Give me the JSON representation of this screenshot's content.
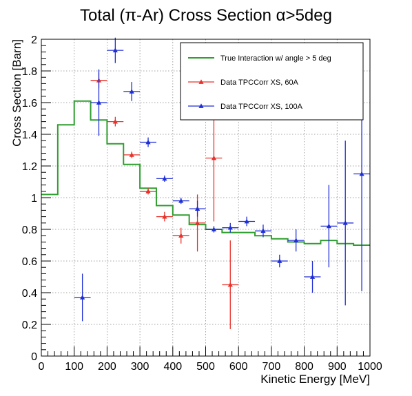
{
  "chart_data": {
    "type": "scatter",
    "title": "Total (π-Ar) Cross Section α>5deg",
    "xlabel": "Kinetic Energy [MeV]",
    "ylabel": "Cross Section [Barn]",
    "xlim": [
      0,
      1000
    ],
    "ylim": [
      0,
      2
    ],
    "x_ticks": [
      0,
      100,
      200,
      300,
      400,
      500,
      600,
      700,
      800,
      900,
      1000
    ],
    "y_ticks": [
      0,
      0.2,
      0.4,
      0.6,
      0.8,
      1,
      1.2,
      1.4,
      1.6,
      1.8,
      2
    ],
    "x_tick_labels": [
      "0",
      "100",
      "200",
      "300",
      "400",
      "500",
      "600",
      "700",
      "800",
      "900",
      "1000"
    ],
    "y_tick_labels": [
      "0",
      "0.2",
      "0.4",
      "0.6",
      "0.8",
      "1",
      "1.2",
      "1.4",
      "1.6",
      "1.8",
      "2"
    ],
    "grid": true,
    "legend_position": "top-right",
    "series": [
      {
        "name": "True Interaction w/ angle > 5 deg",
        "kind": "step",
        "color": "#2e9e2e",
        "bin_edges": [
          0,
          50,
          100,
          150,
          200,
          250,
          300,
          350,
          400,
          450,
          500,
          550,
          600,
          650,
          700,
          750,
          800,
          850,
          900,
          950,
          1000
        ],
        "values": [
          1.02,
          1.46,
          1.61,
          1.49,
          1.34,
          1.21,
          1.06,
          0.95,
          0.89,
          0.83,
          0.8,
          0.78,
          0.78,
          0.76,
          0.74,
          0.72,
          0.71,
          0.73,
          0.71,
          0.7
        ]
      },
      {
        "name": "Data TPCCorr XS, 60A",
        "kind": "points",
        "color": "#e8312a",
        "marker": "triangle",
        "points": [
          {
            "x": 175,
            "y": 1.74,
            "xerr": 25,
            "yerr": 0.05
          },
          {
            "x": 225,
            "y": 1.48,
            "xerr": 25,
            "yerr": 0.03
          },
          {
            "x": 275,
            "y": 1.27,
            "xerr": 25,
            "yerr": 0.02
          },
          {
            "x": 325,
            "y": 1.04,
            "xerr": 25,
            "yerr": 0.02
          },
          {
            "x": 375,
            "y": 0.88,
            "xerr": 25,
            "yerr": 0.03
          },
          {
            "x": 425,
            "y": 0.76,
            "xerr": 25,
            "yerr": 0.05
          },
          {
            "x": 475,
            "y": 0.84,
            "xerr": 25,
            "yerr": 0.18
          },
          {
            "x": 525,
            "y": 1.25,
            "xerr": 25,
            "yerr": 0.4
          },
          {
            "x": 575,
            "y": 0.45,
            "xerr": 25,
            "yerr": 0.28
          }
        ]
      },
      {
        "name": "Data TPCCorr XS, 100A",
        "kind": "points",
        "color": "#1f2fd6",
        "marker": "triangle",
        "points": [
          {
            "x": 125,
            "y": 0.37,
            "xerr": 25,
            "yerr": 0.15
          },
          {
            "x": 175,
            "y": 1.6,
            "xerr": 25,
            "yerr": 0.21
          },
          {
            "x": 225,
            "y": 1.93,
            "xerr": 25,
            "yerr": 0.08
          },
          {
            "x": 275,
            "y": 1.67,
            "xerr": 25,
            "yerr": 0.06
          },
          {
            "x": 325,
            "y": 1.35,
            "xerr": 25,
            "yerr": 0.03
          },
          {
            "x": 375,
            "y": 1.12,
            "xerr": 25,
            "yerr": 0.02
          },
          {
            "x": 425,
            "y": 0.98,
            "xerr": 25,
            "yerr": 0.02
          },
          {
            "x": 475,
            "y": 0.93,
            "xerr": 25,
            "yerr": 0.05
          },
          {
            "x": 525,
            "y": 0.8,
            "xerr": 25,
            "yerr": 0.02
          },
          {
            "x": 575,
            "y": 0.81,
            "xerr": 25,
            "yerr": 0.03
          },
          {
            "x": 625,
            "y": 0.85,
            "xerr": 25,
            "yerr": 0.03
          },
          {
            "x": 675,
            "y": 0.79,
            "xerr": 25,
            "yerr": 0.04
          },
          {
            "x": 725,
            "y": 0.6,
            "xerr": 25,
            "yerr": 0.04
          },
          {
            "x": 775,
            "y": 0.73,
            "xerr": 25,
            "yerr": 0.07
          },
          {
            "x": 825,
            "y": 0.5,
            "xerr": 25,
            "yerr": 0.1
          },
          {
            "x": 875,
            "y": 0.82,
            "xerr": 25,
            "yerr": 0.26
          },
          {
            "x": 925,
            "y": 0.84,
            "xerr": 25,
            "yerr": 0.52
          },
          {
            "x": 975,
            "y": 1.15,
            "xerr": 25,
            "yerr": 0.74
          }
        ]
      }
    ]
  }
}
